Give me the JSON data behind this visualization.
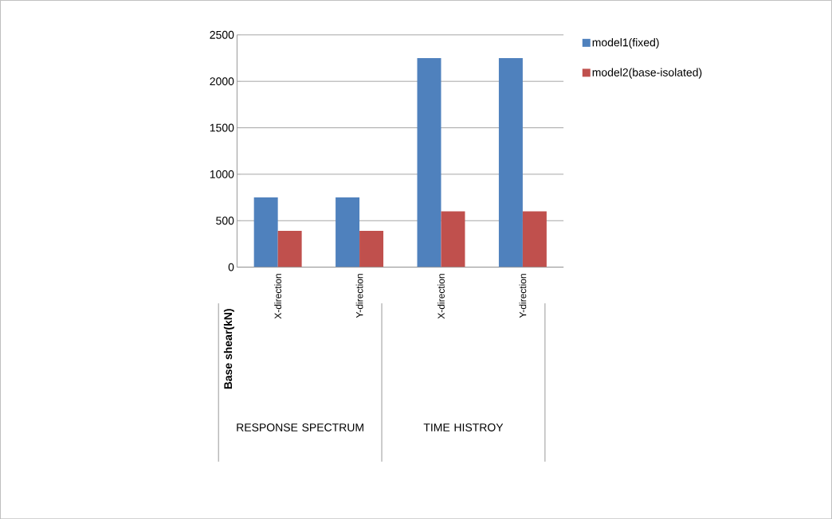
{
  "chart_data": {
    "type": "bar",
    "ylabel": "Base shear(kN)",
    "categories": [
      "X-direction",
      "Y-direction",
      "X-direction",
      "Y-direction"
    ],
    "series": [
      {
        "name": "model1(fixed)",
        "color": "#4f81bd",
        "values": [
          750,
          750,
          2250,
          2250
        ]
      },
      {
        "name": "model2(base-isolated)",
        "color": "#c0504d",
        "values": [
          390,
          390,
          600,
          600
        ]
      }
    ],
    "ylim": [
      0,
      2500
    ],
    "yticks": [
      0,
      500,
      1000,
      1500,
      2000,
      2500
    ],
    "grid": "y",
    "legend": "right",
    "annotations": [
      "RESPONSE SPECTRUM",
      "TIME HISTROY"
    ]
  }
}
